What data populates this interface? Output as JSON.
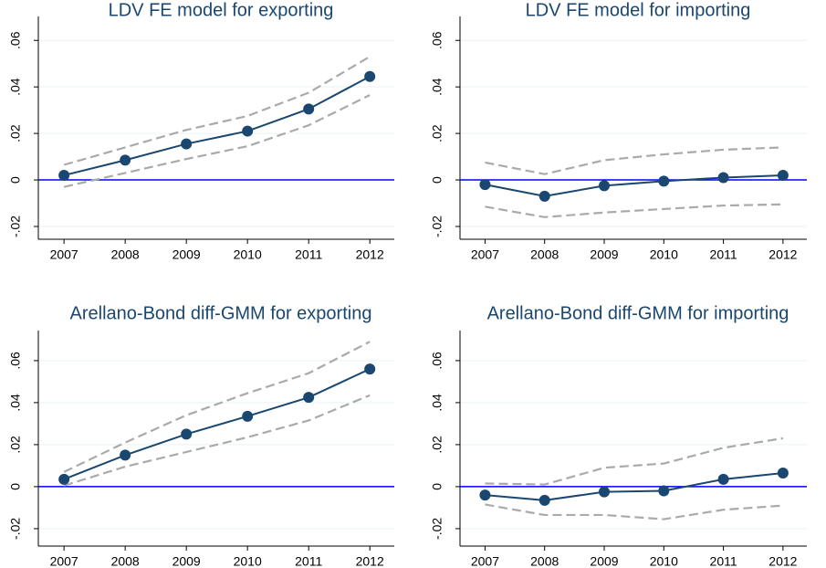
{
  "chart_data": [
    {
      "type": "line",
      "title": "LDV FE model for exporting",
      "x": [
        2007,
        2008,
        2009,
        2010,
        2011,
        2012
      ],
      "xlim": [
        2006.58,
        2012.4
      ],
      "xticks": [
        2007,
        2008,
        2009,
        2010,
        2011,
        2012
      ],
      "ylim": [
        -0.0255,
        0.0703
      ],
      "yticks": [
        {
          "value": -0.02,
          "label": "-.02"
        },
        0,
        {
          "value": 0.02,
          "label": ".02"
        },
        {
          "value": 0.04,
          "label": ".04"
        },
        {
          "value": 0.06,
          "label": ".06"
        }
      ],
      "grid": true,
      "refline": 0,
      "refline_color": "#0000ff",
      "series": [
        {
          "color": "#aaaaaa",
          "dash": true,
          "markers": false,
          "values": [
            0.0065,
            0.014,
            0.0215,
            0.0275,
            0.0375,
            0.053
          ]
        },
        {
          "color": "#aaaaaa",
          "dash": true,
          "markers": false,
          "values": [
            -0.003,
            0.003,
            0.009,
            0.0145,
            0.0235,
            0.0365
          ]
        },
        {
          "color": "#1a476f",
          "dash": false,
          "markers": true,
          "values": [
            0.002,
            0.0085,
            0.0155,
            0.021,
            0.0305,
            0.0445
          ]
        }
      ]
    },
    {
      "type": "line",
      "title": "LDV FE model for importing",
      "x": [
        2007,
        2008,
        2009,
        2010,
        2011,
        2012
      ],
      "xlim": [
        2006.58,
        2012.4
      ],
      "xticks": [
        2007,
        2008,
        2009,
        2010,
        2011,
        2012
      ],
      "ylim": [
        -0.0255,
        0.0703
      ],
      "yticks": [
        {
          "value": -0.02,
          "label": "-.02"
        },
        0,
        {
          "value": 0.02,
          "label": ".02"
        },
        {
          "value": 0.04,
          "label": ".04"
        },
        {
          "value": 0.06,
          "label": ".06"
        }
      ],
      "grid": true,
      "refline": 0,
      "refline_color": "#0000ff",
      "series": [
        {
          "color": "#aaaaaa",
          "dash": true,
          "markers": false,
          "values": [
            0.0075,
            0.0025,
            0.0085,
            0.011,
            0.013,
            0.014
          ]
        },
        {
          "color": "#aaaaaa",
          "dash": true,
          "markers": false,
          "values": [
            -0.0115,
            -0.016,
            -0.014,
            -0.0125,
            -0.011,
            -0.0105
          ]
        },
        {
          "color": "#1a476f",
          "dash": false,
          "markers": true,
          "values": [
            -0.002,
            -0.007,
            -0.0025,
            -0.0005,
            0.001,
            0.002
          ]
        }
      ]
    },
    {
      "type": "line",
      "title": "Arellano-Bond diff-GMM for exporting",
      "x": [
        2007,
        2008,
        2009,
        2010,
        2011,
        2012
      ],
      "xlim": [
        2006.58,
        2012.4
      ],
      "xticks": [
        2007,
        2008,
        2009,
        2010,
        2011,
        2012
      ],
      "ylim": [
        -0.0283,
        0.0743
      ],
      "yticks": [
        {
          "value": -0.02,
          "label": "-.02"
        },
        0,
        {
          "value": 0.02,
          "label": ".02"
        },
        {
          "value": 0.04,
          "label": ".04"
        },
        {
          "value": 0.06,
          "label": ".06"
        }
      ],
      "grid": true,
      "refline": 0,
      "refline_color": "#0000ff",
      "series": [
        {
          "color": "#aaaaaa",
          "dash": true,
          "markers": false,
          "values": [
            0.007,
            0.021,
            0.034,
            0.0445,
            0.054,
            0.069
          ]
        },
        {
          "color": "#aaaaaa",
          "dash": true,
          "markers": false,
          "values": [
            0.0005,
            0.0095,
            0.0165,
            0.0235,
            0.0315,
            0.0435
          ]
        },
        {
          "color": "#1a476f",
          "dash": false,
          "markers": true,
          "values": [
            0.0035,
            0.015,
            0.025,
            0.0335,
            0.0425,
            0.056
          ]
        }
      ]
    },
    {
      "type": "line",
      "title": "Arellano-Bond diff-GMM for importing",
      "x": [
        2007,
        2008,
        2009,
        2010,
        2011,
        2012
      ],
      "xlim": [
        2006.58,
        2012.4
      ],
      "xticks": [
        2007,
        2008,
        2009,
        2010,
        2011,
        2012
      ],
      "ylim": [
        -0.0283,
        0.0743
      ],
      "yticks": [
        {
          "value": -0.02,
          "label": "-.02"
        },
        0,
        {
          "value": 0.02,
          "label": ".02"
        },
        {
          "value": 0.04,
          "label": ".04"
        },
        {
          "value": 0.06,
          "label": ".06"
        }
      ],
      "grid": true,
      "refline": 0,
      "refline_color": "#0000ff",
      "series": [
        {
          "color": "#aaaaaa",
          "dash": true,
          "markers": false,
          "values": [
            0.0015,
            0.001,
            0.009,
            0.011,
            0.0185,
            0.023
          ]
        },
        {
          "color": "#aaaaaa",
          "dash": true,
          "markers": false,
          "values": [
            -0.0085,
            -0.0135,
            -0.0135,
            -0.0155,
            -0.011,
            -0.009
          ]
        },
        {
          "color": "#1a476f",
          "dash": false,
          "markers": true,
          "values": [
            -0.004,
            -0.0065,
            -0.0025,
            -0.002,
            0.0035,
            0.0065
          ]
        }
      ]
    }
  ]
}
